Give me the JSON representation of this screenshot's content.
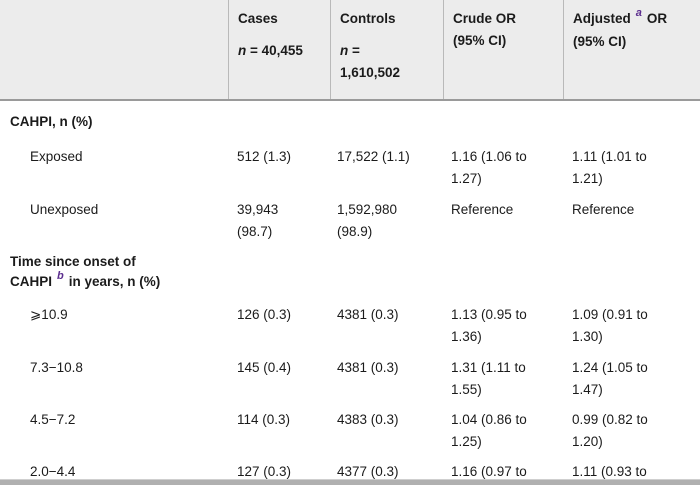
{
  "colors": {
    "header_bg": "#ececec",
    "header_border": "#9a9a9a",
    "superscript_accent": "#5b2d8e"
  },
  "table": {
    "columns": {
      "cases": {
        "title": "Cases",
        "n_label": "n",
        "n_value": " = 40,455"
      },
      "controls": {
        "title": "Controls",
        "n_label": "n",
        "n_value": " = 1,610,502"
      },
      "crude": {
        "title": "Crude OR",
        "sub": "(95% CI)"
      },
      "adjusted": {
        "title": "Adjusted",
        "sup": "a",
        "title_after": "OR",
        "sub": "(95% CI)"
      }
    },
    "rows": [
      {
        "label": "CAHPI, n (%)"
      },
      {
        "label": "Exposed",
        "cases": "512 (1.3)",
        "controls": "17,522 (1.1)",
        "crude": "1.16 (1.06 to 1.27)",
        "adjusted": "1.11 (1.01 to 1.21)"
      },
      {
        "label": "Unexposed",
        "cases": "39,943 (98.7)",
        "controls": "1,592,980 (98.9)",
        "crude": "Reference",
        "adjusted": "Reference"
      },
      {
        "label_pre": "Time since onset of CAHPI",
        "label_sup": "b",
        "label_post": "in years, n (%)"
      },
      {
        "label": "⩾10.9",
        "cases": "126 (0.3)",
        "controls": "4381 (0.3)",
        "crude": "1.13 (0.95 to 1.36)",
        "adjusted": "1.09 (0.91 to 1.30)"
      },
      {
        "label": "7.3−10.8",
        "cases": "145 (0.4)",
        "controls": "4381 (0.3)",
        "crude": "1.31 (1.11 to 1.55)",
        "adjusted": "1.24 (1.05 to 1.47)"
      },
      {
        "label": "4.5−7.2",
        "cases": "114 (0.3)",
        "controls": "4383 (0.3)",
        "crude": "1.04 (0.86 to 1.25)",
        "adjusted": "0.99 (0.82 to 1.20)"
      },
      {
        "label": "2.0−4.4",
        "cases": "127 (0.3)",
        "controls": "4377 (0.3)",
        "crude": "1.16 (0.97 to",
        "adjusted": "1.11 (0.93 to"
      }
    ]
  }
}
